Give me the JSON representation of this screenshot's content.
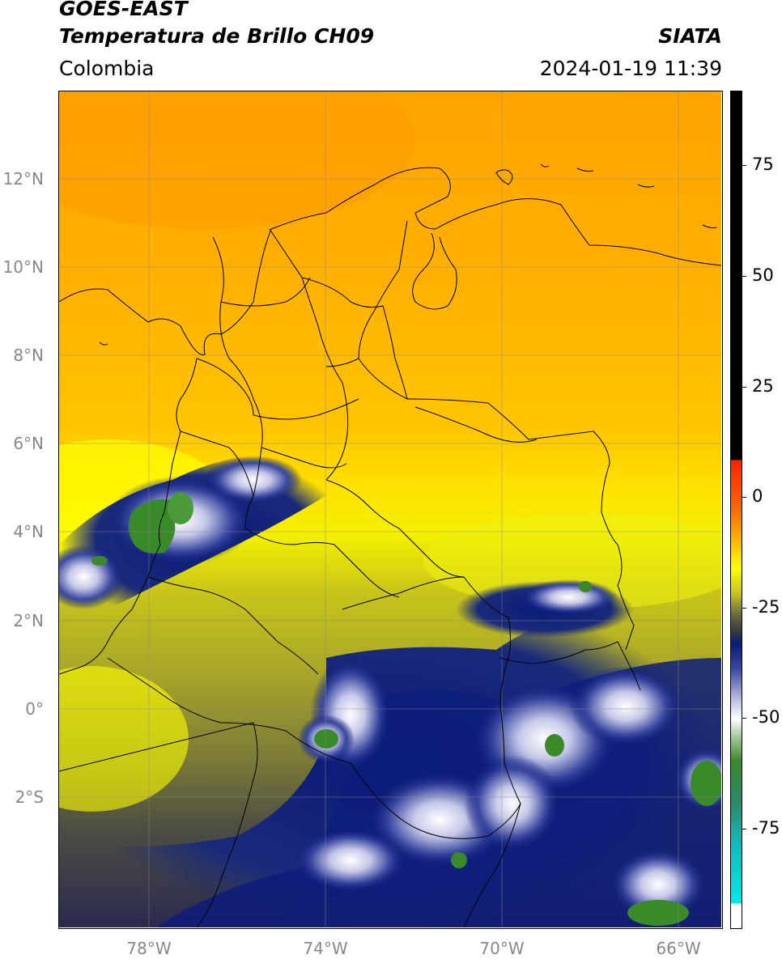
{
  "header": {
    "title_line1": "GOES-EAST",
    "title_line2": "Temperatura de Brillo CH09",
    "source": "SIATA",
    "region": "Colombia",
    "timestamp": "2024-01-19 11:39"
  },
  "map": {
    "projection": "lat-lon",
    "lon_range": [
      -80,
      -65
    ],
    "lat_range": [
      -5,
      14
    ],
    "lat_ticks": [
      {
        "value": 12,
        "label": "12°N"
      },
      {
        "value": 10,
        "label": "10°N"
      },
      {
        "value": 8,
        "label": "8°N"
      },
      {
        "value": 6,
        "label": "6°N"
      },
      {
        "value": 4,
        "label": "4°N"
      },
      {
        "value": 2,
        "label": "2°N"
      },
      {
        "value": 0,
        "label": "0°"
      },
      {
        "value": -2,
        "label": "2°S"
      }
    ],
    "lon_ticks": [
      {
        "value": -78,
        "label": "78°W"
      },
      {
        "value": -74,
        "label": "74°W"
      },
      {
        "value": -70,
        "label": "70°W"
      },
      {
        "value": -66,
        "label": "66°W"
      }
    ],
    "gridlines": true
  },
  "colorbar": {
    "ticks": [
      {
        "value": 75,
        "label": "75"
      },
      {
        "value": 50,
        "label": "50"
      },
      {
        "value": 25,
        "label": "25"
      },
      {
        "value": 0,
        "label": "0"
      },
      {
        "value": -25,
        "label": "-25"
      },
      {
        "value": -50,
        "label": "-50"
      },
      {
        "value": -75,
        "label": "-75"
      }
    ],
    "colors": {
      "black": "#000000",
      "red": "#ff2200",
      "orange": "#ffa800",
      "yellow": "#ffff00",
      "olive": "#9a9a28",
      "dark_gray": "#4a4a40",
      "navy": "#0a1a78",
      "white": "#ffffff",
      "green": "#3a8a2a",
      "cyan": "#00dede"
    }
  }
}
